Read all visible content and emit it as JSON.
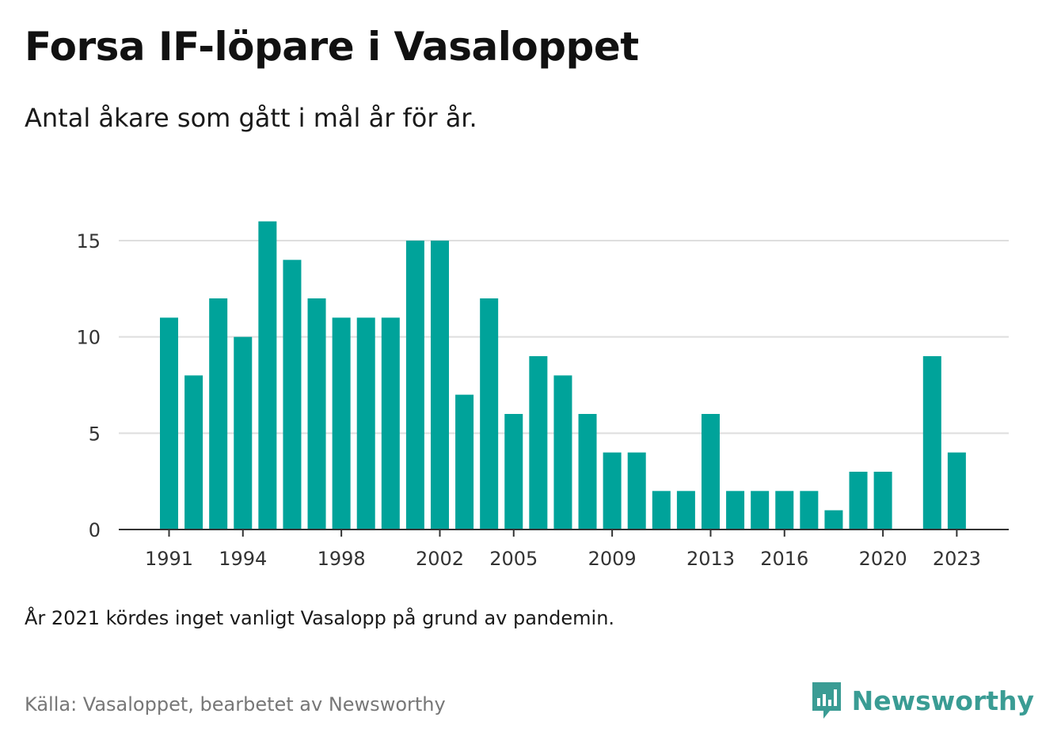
{
  "header": {
    "title": "Forsa IF-löpare i Vasaloppet",
    "subtitle": "Antal åkare som gått i mål år för år."
  },
  "footer": {
    "note": "År 2021 kördes inget vanligt Vasalopp på grund av pandemin.",
    "source": "Källa: Vasaloppet, bearbetet av Newsworthy"
  },
  "brand": {
    "name": "Newsworthy",
    "icon": "newsworthy-logo-icon",
    "color": "#3a9c94"
  },
  "chart_data": {
    "type": "bar",
    "title": "Forsa IF-löpare i Vasaloppet",
    "subtitle": "Antal åkare som gått i mål år för år.",
    "bar_color": "#00a39a",
    "categories": [
      1991,
      1992,
      1993,
      1994,
      1995,
      1996,
      1997,
      1998,
      1999,
      2000,
      2001,
      2002,
      2003,
      2004,
      2005,
      2006,
      2007,
      2008,
      2009,
      2010,
      2011,
      2012,
      2013,
      2014,
      2015,
      2016,
      2017,
      2018,
      2019,
      2020,
      2021,
      2022,
      2023
    ],
    "values": [
      11,
      8,
      12,
      10,
      16,
      14,
      12,
      11,
      11,
      11,
      15,
      15,
      7,
      12,
      6,
      9,
      8,
      6,
      4,
      4,
      2,
      2,
      6,
      2,
      2,
      2,
      2,
      1,
      3,
      3,
      0,
      9,
      4
    ],
    "x_ticks": [
      1991,
      1994,
      1998,
      2002,
      2005,
      2009,
      2013,
      2016,
      2020,
      2023
    ],
    "y_ticks": [
      0,
      5,
      10,
      15
    ],
    "ylim": [
      0,
      17
    ],
    "grid": true,
    "xlabel": "",
    "ylabel": ""
  }
}
